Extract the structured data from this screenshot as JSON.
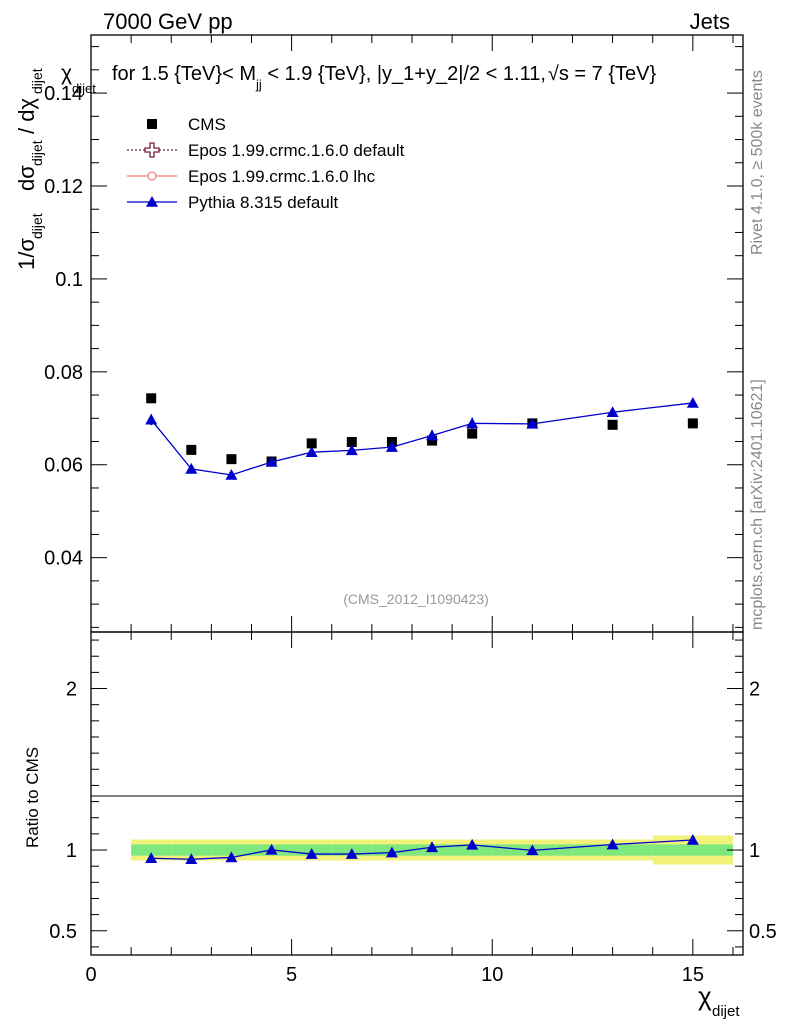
{
  "header": {
    "left": "7000 GeV pp",
    "right": "Jets"
  },
  "plot_title": "χ_dijet for 1.5 {TeV}< M_jj < 1.9 {TeV}, |y_1+y_2|/2 < 1.11, √s = 7 {TeV}",
  "plot_title_parts": {
    "lead": "for 1.5 {TeV}< M",
    "sub": "jj",
    "rest": " < 1.9 {TeV}, |y_1+y_2|/2 < 1.11,",
    "sqrt": "√s",
    "tail": " = 7 {TeV}"
  },
  "side_label_top": "Rivet 4.1.0, ≥ 500k events",
  "side_label_bottom": "mcplots.cern.ch [arXiv:2401.10621]",
  "watermark": "(CMS_2012_I1090423)",
  "y_axis_label": "1/σ_dijet dσ_dijet / dχ_dijet",
  "ratio_y_label": "Ratio to CMS",
  "x_axis_label": "χ_dijet",
  "colors": {
    "cms": "#000000",
    "epos_default": "#7b1d3a",
    "epos_lhc": "#f08080",
    "pythia": "#0000cc",
    "band_inner": "#7ee87e",
    "band_outer": "#f2f27a"
  },
  "chart_data": {
    "type": "scatter",
    "main": {
      "xlim": [
        0,
        16.25
      ],
      "ylim": [
        0.024,
        0.1525
      ],
      "y_ticks": [
        0.04,
        0.06,
        0.08,
        0.1,
        0.12,
        0.14
      ],
      "y_tick_labels": [
        "0.04",
        "0.06",
        "0.08",
        "0.1",
        "0.12",
        "0.14"
      ]
    },
    "ratio": {
      "xlim": [
        0,
        16.25
      ],
      "ylim": [
        0.35,
        2.35
      ],
      "y_ticks": [
        0.5,
        1,
        2
      ],
      "y_tick_labels": [
        "0.5",
        "1",
        "2"
      ]
    },
    "x_ticks": [
      0,
      5,
      10,
      15
    ],
    "x_tick_labels": [
      "0",
      "5",
      "10",
      "15"
    ],
    "x_bins": [
      [
        1,
        2
      ],
      [
        2,
        3
      ],
      [
        3,
        4
      ],
      [
        4,
        5
      ],
      [
        5,
        6
      ],
      [
        6,
        7
      ],
      [
        7,
        8
      ],
      [
        8,
        9
      ],
      [
        9,
        10
      ],
      [
        10,
        12
      ],
      [
        12,
        14
      ],
      [
        14,
        16
      ]
    ],
    "legend": [
      {
        "name": "CMS",
        "marker": "square",
        "color": "#000000",
        "line": "none"
      },
      {
        "name": "Epos 1.99.crmc.1.6.0 default",
        "marker": "open-cross",
        "color": "#7b1d3a",
        "line": "dotted"
      },
      {
        "name": "Epos 1.99.crmc.1.6.0 lhc",
        "marker": "open-circle",
        "color": "#f08080",
        "line": "solid"
      },
      {
        "name": "Pythia 8.315 default",
        "marker": "triangle",
        "color": "#0000cc",
        "line": "solid"
      }
    ],
    "series": [
      {
        "name": "CMS",
        "x": [
          1.5,
          2.5,
          3.5,
          4.5,
          5.5,
          6.5,
          7.5,
          8.5,
          9.5,
          11,
          13,
          15
        ],
        "values": [
          0.0743,
          0.0632,
          0.0612,
          0.0607,
          0.0646,
          0.0649,
          0.0649,
          0.0652,
          0.0667,
          0.0689,
          0.0686,
          0.0689
        ]
      },
      {
        "name": "Pythia 8.315 default",
        "x": [
          1.5,
          2.5,
          3.5,
          4.5,
          5.5,
          6.5,
          7.5,
          8.5,
          9.5,
          11,
          13,
          15
        ],
        "values": [
          0.0697,
          0.0591,
          0.0578,
          0.0606,
          0.0627,
          0.0631,
          0.0638,
          0.0663,
          0.0689,
          0.0688,
          0.0713,
          0.0733
        ],
        "errors": [
          0.0012,
          0.001,
          0.0009,
          0.001,
          0.0009,
          0.001,
          0.001,
          0.0012,
          0.0013,
          0.0009,
          0.0009,
          0.0009
        ]
      },
      {
        "name": "Pythia 8.315 default / CMS",
        "x": [
          1.5,
          2.5,
          3.5,
          4.5,
          5.5,
          6.5,
          7.5,
          8.5,
          9.5,
          11,
          13,
          15
        ],
        "values": [
          0.949,
          0.943,
          0.954,
          1.001,
          0.975,
          0.975,
          0.984,
          1.017,
          1.032,
          0.998,
          1.034,
          1.062
        ]
      }
    ],
    "ratio_band": {
      "inner": [
        0.035,
        0.035,
        0.035,
        0.035,
        0.035,
        0.035,
        0.035,
        0.035,
        0.035,
        0.035,
        0.035,
        0.035
      ],
      "outer": [
        0.065,
        0.065,
        0.065,
        0.065,
        0.065,
        0.065,
        0.065,
        0.065,
        0.065,
        0.065,
        0.065,
        0.09
      ]
    }
  }
}
